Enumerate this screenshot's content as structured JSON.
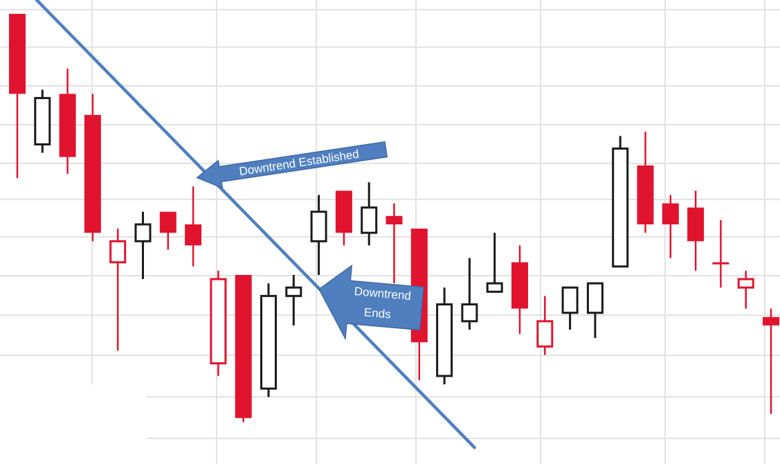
{
  "chart_data": {
    "type": "candlestick",
    "title": "",
    "xlabel": "",
    "ylabel": "",
    "ylim": [
      0,
      100
    ],
    "grid": true,
    "colors": {
      "bearish": "#e0142f",
      "bullish_outline": "#1a1a1a",
      "bearish_hollow": "#e0142f",
      "trendline": "#4f7fbf",
      "arrow_fill": "#4f7fbf",
      "arrow_stroke": "#3d68a5",
      "grid": "#e2e2e2"
    },
    "candles": [
      {
        "o": 81,
        "h": 100,
        "l": 61,
        "c": 100,
        "style": "bear-filled"
      },
      {
        "o": 69,
        "h": 82,
        "l": 67,
        "c": 80,
        "style": "bull"
      },
      {
        "o": 81,
        "h": 87,
        "l": 62,
        "c": 66,
        "style": "bear-filled"
      },
      {
        "o": 76,
        "h": 81,
        "l": 46,
        "c": 48,
        "style": "bear-filled"
      },
      {
        "o": 41,
        "h": 49,
        "l": 20,
        "c": 46,
        "style": "bear-hollow"
      },
      {
        "o": 46,
        "h": 53,
        "l": 37,
        "c": 50,
        "style": "bull"
      },
      {
        "o": 53,
        "h": 53,
        "l": 44,
        "c": 48,
        "style": "bear-filled"
      },
      {
        "o": 50,
        "h": 59,
        "l": 40,
        "c": 45,
        "style": "bear-filled"
      },
      {
        "o": 37,
        "h": 39,
        "l": 14,
        "c": 17,
        "style": "bear-hollow"
      },
      {
        "o": 38,
        "h": 38,
        "l": 3,
        "c": 4,
        "style": "bear-filled"
      },
      {
        "o": 11,
        "h": 36,
        "l": 9,
        "c": 33,
        "style": "bull"
      },
      {
        "o": 33,
        "h": 38,
        "l": 26,
        "c": 35,
        "style": "bull"
      },
      {
        "o": 46,
        "h": 57,
        "l": 38,
        "c": 53,
        "style": "bull"
      },
      {
        "o": 58,
        "h": 58,
        "l": 45,
        "c": 48,
        "style": "bear-filled"
      },
      {
        "o": 48,
        "h": 60,
        "l": 45,
        "c": 54,
        "style": "bull"
      },
      {
        "o": 52,
        "h": 55,
        "l": 36,
        "c": 50,
        "style": "bear-filled"
      },
      {
        "o": 49,
        "h": 49,
        "l": 13,
        "c": 22,
        "style": "bear-filled"
      },
      {
        "o": 14,
        "h": 35,
        "l": 12,
        "c": 31,
        "style": "bull"
      },
      {
        "o": 27,
        "h": 42,
        "l": 25,
        "c": 31,
        "style": "bull"
      },
      {
        "o": 34,
        "h": 48,
        "l": 34,
        "c": 36,
        "style": "bull"
      },
      {
        "o": 41,
        "h": 45,
        "l": 24,
        "c": 30,
        "style": "bear-filled"
      },
      {
        "o": 21,
        "h": 33,
        "l": 19,
        "c": 27,
        "style": "bear-hollow"
      },
      {
        "o": 29,
        "h": 35,
        "l": 25,
        "c": 35,
        "style": "bull"
      },
      {
        "o": 29,
        "h": 36,
        "l": 23,
        "c": 36,
        "style": "bull"
      },
      {
        "o": 40,
        "h": 71,
        "l": 40,
        "c": 68,
        "style": "bull"
      },
      {
        "o": 64,
        "h": 72,
        "l": 48,
        "c": 50,
        "style": "bear-filled"
      },
      {
        "o": 55,
        "h": 57,
        "l": 42,
        "c": 50,
        "style": "bear-filled"
      },
      {
        "o": 54,
        "h": 58,
        "l": 39,
        "c": 46,
        "style": "bear-filled"
      },
      {
        "o": 41,
        "h": 51,
        "l": 35,
        "c": 41,
        "style": "bear-filled"
      },
      {
        "o": 37,
        "h": 39,
        "l": 30,
        "c": 35,
        "style": "bear-hollow"
      },
      {
        "o": 28,
        "h": 30,
        "l": 5,
        "c": 26,
        "style": "bear-filled"
      }
    ],
    "trendline": {
      "from": [
        0,
        108
      ],
      "to": [
        18.2,
        -3
      ]
    },
    "annotations": [
      {
        "text": "Downtrend Established",
        "direction": "points-left"
      },
      {
        "text_lines": [
          "Downtrend",
          "Ends"
        ],
        "direction": "points-left"
      }
    ]
  }
}
